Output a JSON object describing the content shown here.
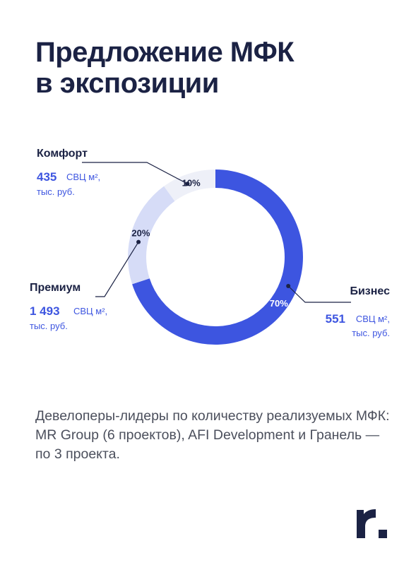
{
  "header": {
    "title_line1": "Предложение МФК",
    "title_line2": "в экспозиции"
  },
  "chart_data": {
    "type": "donut",
    "slices": [
      {
        "name": "Бизнес",
        "percent": 70,
        "label": "70%",
        "value": "551",
        "unit": "СВЦ м², тыс. руб.",
        "unit_line1": "СВЦ м²,",
        "unit_line2": "тыс. руб.",
        "color": "#3d55e0",
        "label_color": "#ffffff"
      },
      {
        "name": "Премиум",
        "percent": 20,
        "label": "20%",
        "value": "1 493",
        "unit": "СВЦ м², тыс. руб.",
        "unit_line1": "СВЦ м²,",
        "unit_line2": "тыс. руб.",
        "color": "#d6dcf7",
        "label_color": "#1b2244"
      },
      {
        "name": "Комфорт",
        "percent": 10,
        "label": "10%",
        "value": "435",
        "unit": "СВЦ м², тыс. руб.",
        "unit_line1": "СВЦ м²,",
        "unit_line2": "тыс. руб.",
        "color": "#eef0f8",
        "label_color": "#1b2244"
      }
    ]
  },
  "footer": {
    "text": "Девелоперы-лидеры по количеству реализуемых МФК: MR Group (6 проектов), AFI Development и Гранель — по 3 проекта."
  },
  "logo": {
    "icon": "brand-r-logo",
    "color": "#1b2244"
  }
}
